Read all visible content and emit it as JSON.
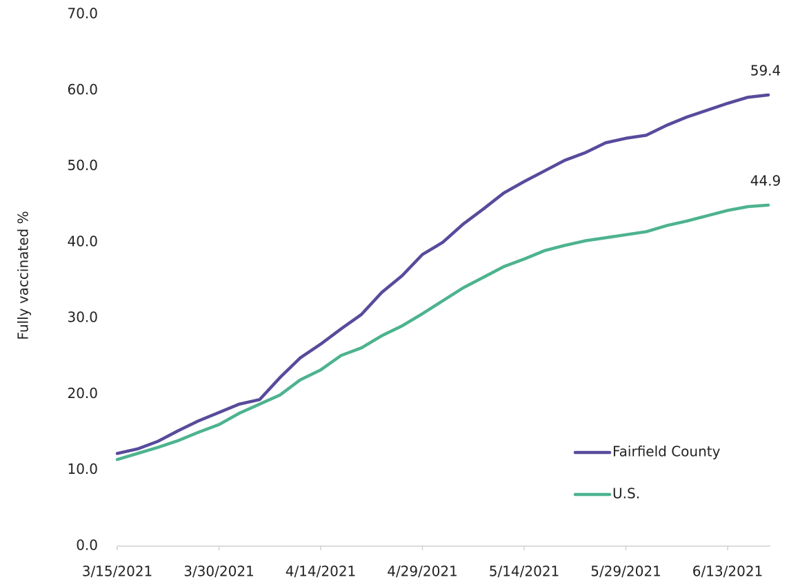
{
  "chart_data": {
    "type": "line",
    "y_label": "Fully vaccinated %",
    "x": [
      "3/15/2021",
      "3/18/2021",
      "3/21/2021",
      "3/24/2021",
      "3/27/2021",
      "3/30/2021",
      "4/2/2021",
      "4/5/2021",
      "4/8/2021",
      "4/11/2021",
      "4/14/2021",
      "4/17/2021",
      "4/20/2021",
      "4/23/2021",
      "4/26/2021",
      "4/29/2021",
      "5/2/2021",
      "5/5/2021",
      "5/8/2021",
      "5/11/2021",
      "5/14/2021",
      "5/17/2021",
      "5/20/2021",
      "5/23/2021",
      "5/26/2021",
      "5/29/2021",
      "6/1/2021",
      "6/4/2021",
      "6/7/2021",
      "6/10/2021",
      "6/13/2021",
      "6/16/2021",
      "6/19/2021"
    ],
    "series": [
      {
        "name": "Fairfield County",
        "color": "#574b9c",
        "values": [
          12.2,
          12.8,
          13.8,
          15.2,
          16.5,
          17.6,
          18.7,
          19.3,
          22.2,
          24.8,
          26.6,
          28.6,
          30.5,
          33.4,
          35.6,
          38.4,
          40.0,
          42.4,
          44.4,
          46.5,
          48.0,
          49.4,
          50.8,
          51.8,
          53.1,
          53.7,
          54.1,
          55.4,
          56.5,
          57.4,
          58.3,
          59.1,
          59.4
        ]
      },
      {
        "name": "U.S.",
        "color": "#4db38e",
        "values": [
          11.4,
          12.2,
          13.0,
          13.9,
          15.0,
          16.0,
          17.5,
          18.7,
          19.9,
          21.9,
          23.2,
          25.1,
          26.1,
          27.7,
          29.0,
          30.6,
          32.3,
          34.0,
          35.4,
          36.8,
          37.8,
          38.9,
          39.6,
          40.2,
          40.6,
          41.0,
          41.4,
          42.2,
          42.8,
          43.5,
          44.2,
          44.7,
          44.9
        ]
      }
    ],
    "xlim": [
      "3/15/2021",
      "6/19/2021"
    ],
    "xticks": [
      "3/15/2021",
      "3/30/2021",
      "4/14/2021",
      "4/29/2021",
      "5/14/2021",
      "5/29/2021",
      "6/13/2021"
    ],
    "ylim": [
      0,
      70
    ],
    "yticks": [
      {
        "value": 0,
        "label": "0.0"
      },
      {
        "value": 10,
        "label": "10.0"
      },
      {
        "value": 20,
        "label": "20.0"
      },
      {
        "value": 30,
        "label": "30.0"
      },
      {
        "value": 40,
        "label": "40.0"
      },
      {
        "value": 50,
        "label": "50.0"
      },
      {
        "value": 60,
        "label": "60.0"
      },
      {
        "value": 70,
        "label": "70.0"
      }
    ],
    "grid": false,
    "legend": "lower right",
    "end_labels": true
  }
}
